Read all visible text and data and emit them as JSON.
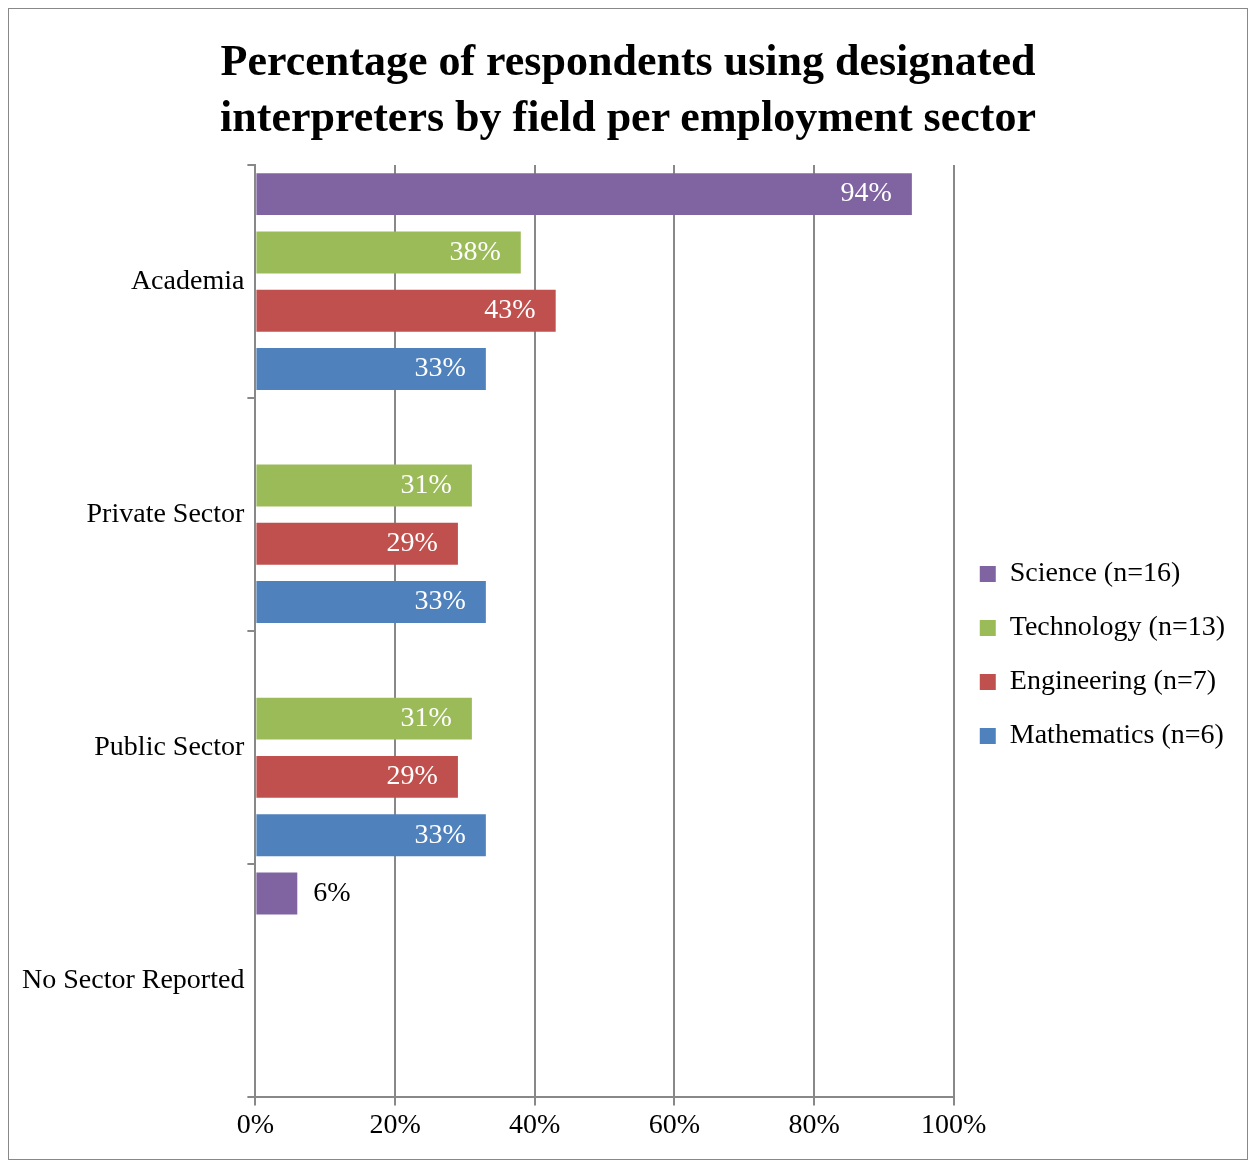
{
  "chart_data": {
    "type": "bar",
    "orientation": "horizontal",
    "title": "Percentage of respondents using designated interpreters by field per employment sector",
    "categories": [
      "Academia",
      "Private Sector",
      "Public Sector",
      "No Sector Reported"
    ],
    "series": [
      {
        "name": "Science (n=16)",
        "color": "#8064a2",
        "values": [
          94,
          null,
          null,
          6
        ],
        "value_labels": [
          "94%",
          null,
          null,
          "6%"
        ]
      },
      {
        "name": "Technology (n=13)",
        "color": "#9bbb59",
        "values": [
          38,
          31,
          31,
          null
        ],
        "value_labels": [
          "38%",
          "31%",
          "31%",
          null
        ]
      },
      {
        "name": "Engineering (n=7)",
        "color": "#c0504d",
        "values": [
          43,
          29,
          29,
          null
        ],
        "value_labels": [
          "43%",
          "29%",
          "29%",
          null
        ]
      },
      {
        "name": "Mathematics (n=6)",
        "color": "#4f81bd",
        "values": [
          33,
          33,
          33,
          null
        ],
        "value_labels": [
          "33%",
          "33%",
          "33%",
          null
        ]
      }
    ],
    "xlim": [
      0,
      100
    ],
    "xticks": [
      {
        "value": 0,
        "label": "0%"
      },
      {
        "value": 20,
        "label": "20%"
      },
      {
        "value": 40,
        "label": "40%"
      },
      {
        "value": 60,
        "label": "60%"
      },
      {
        "value": 80,
        "label": "80%"
      },
      {
        "value": 100,
        "label": "100%"
      }
    ],
    "grid": "x",
    "legend": "right"
  }
}
